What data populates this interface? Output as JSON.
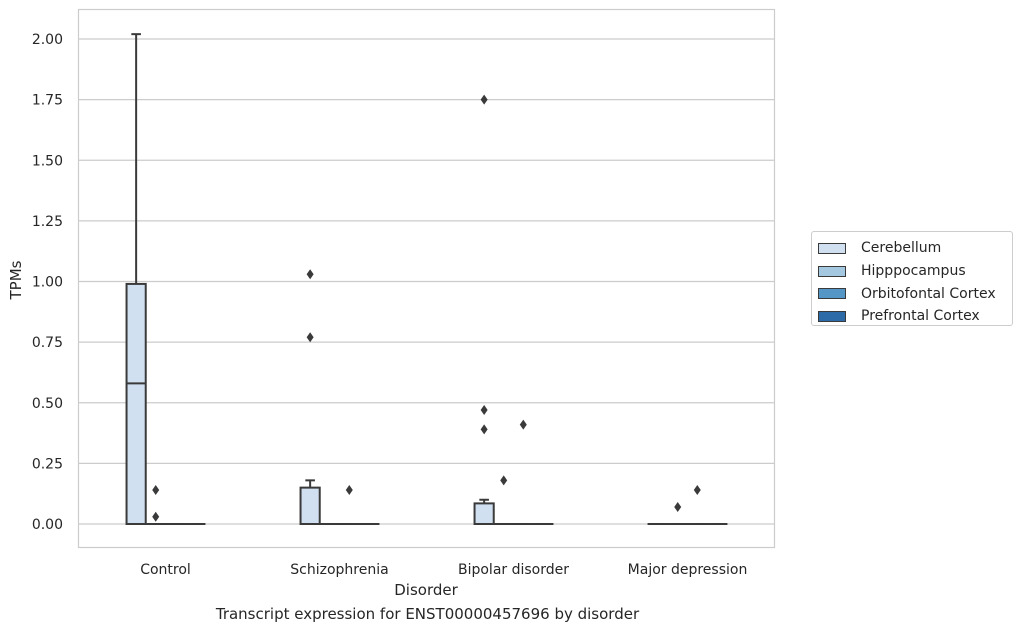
{
  "chart_data": {
    "type": "box",
    "title": "Transcript expression for ENST00000457696 by disorder",
    "xlabel": "Disorder",
    "ylabel": "TPMs",
    "ylim": [
      -0.1,
      2.12
    ],
    "yticks": [
      0.0,
      0.25,
      0.5,
      0.75,
      1.0,
      1.25,
      1.5,
      1.75,
      2.0
    ],
    "ytick_labels": [
      "0.00",
      "0.25",
      "0.50",
      "0.75",
      "1.00",
      "1.25",
      "1.50",
      "1.75",
      "2.00"
    ],
    "grid": "horizontal",
    "legend_position": "right",
    "categories": [
      "Control",
      "Schizophrenia",
      "Bipolar disorder",
      "Major depression"
    ],
    "series": [
      {
        "name": "Cerebellum",
        "color": "#d0e0f0",
        "boxes": [
          {
            "q1": 0.0,
            "median": 0.58,
            "q3": 0.99,
            "whisker_low": 0.0,
            "whisker_high": 2.02,
            "outliers": []
          },
          {
            "q1": 0.0,
            "median": 0.0,
            "q3": 0.15,
            "whisker_low": 0.0,
            "whisker_high": 0.18,
            "outliers": [
              0.77,
              1.03
            ]
          },
          {
            "q1": 0.0,
            "median": 0.0,
            "q3": 0.085,
            "whisker_low": 0.0,
            "whisker_high": 0.1,
            "outliers": [
              0.39,
              0.47,
              1.75
            ]
          },
          {
            "q1": 0.0,
            "median": 0.0,
            "q3": 0.0,
            "whisker_low": 0.0,
            "whisker_high": 0.0,
            "outliers": []
          }
        ]
      },
      {
        "name": "Hipppocampus",
        "color": "#a3c8e0",
        "boxes": [
          {
            "q1": 0.0,
            "median": 0.0,
            "q3": 0.0,
            "whisker_low": 0.0,
            "whisker_high": 0.0,
            "outliers": [
              0.03,
              0.14
            ]
          },
          {
            "q1": 0.0,
            "median": 0.0,
            "q3": 0.0,
            "whisker_low": 0.0,
            "whisker_high": 0.0,
            "outliers": []
          },
          {
            "q1": 0.0,
            "median": 0.0,
            "q3": 0.0,
            "whisker_low": 0.0,
            "whisker_high": 0.0,
            "outliers": [
              0.18
            ]
          },
          {
            "q1": 0.0,
            "median": 0.0,
            "q3": 0.0,
            "whisker_low": 0.0,
            "whisker_high": 0.0,
            "outliers": [
              0.07
            ]
          }
        ]
      },
      {
        "name": "Orbitofontal Cortex",
        "color": "#5497c6",
        "boxes": [
          {
            "q1": 0.0,
            "median": 0.0,
            "q3": 0.0,
            "whisker_low": 0.0,
            "whisker_high": 0.0,
            "outliers": []
          },
          {
            "q1": 0.0,
            "median": 0.0,
            "q3": 0.0,
            "whisker_low": 0.0,
            "whisker_high": 0.0,
            "outliers": [
              0.14
            ]
          },
          {
            "q1": 0.0,
            "median": 0.0,
            "q3": 0.0,
            "whisker_low": 0.0,
            "whisker_high": 0.0,
            "outliers": [
              0.41
            ]
          },
          {
            "q1": 0.0,
            "median": 0.0,
            "q3": 0.0,
            "whisker_low": 0.0,
            "whisker_high": 0.0,
            "outliers": [
              0.14
            ]
          }
        ]
      },
      {
        "name": "Prefrontal Cortex",
        "color": "#2d6aa8",
        "boxes": [
          {
            "q1": 0.0,
            "median": 0.0,
            "q3": 0.0,
            "whisker_low": 0.0,
            "whisker_high": 0.0,
            "outliers": []
          },
          {
            "q1": 0.0,
            "median": 0.0,
            "q3": 0.0,
            "whisker_low": 0.0,
            "whisker_high": 0.0,
            "outliers": []
          },
          {
            "q1": 0.0,
            "median": 0.0,
            "q3": 0.0,
            "whisker_low": 0.0,
            "whisker_high": 0.0,
            "outliers": []
          },
          {
            "q1": 0.0,
            "median": 0.0,
            "q3": 0.0,
            "whisker_low": 0.0,
            "whisker_high": 0.0,
            "outliers": []
          }
        ]
      }
    ]
  }
}
